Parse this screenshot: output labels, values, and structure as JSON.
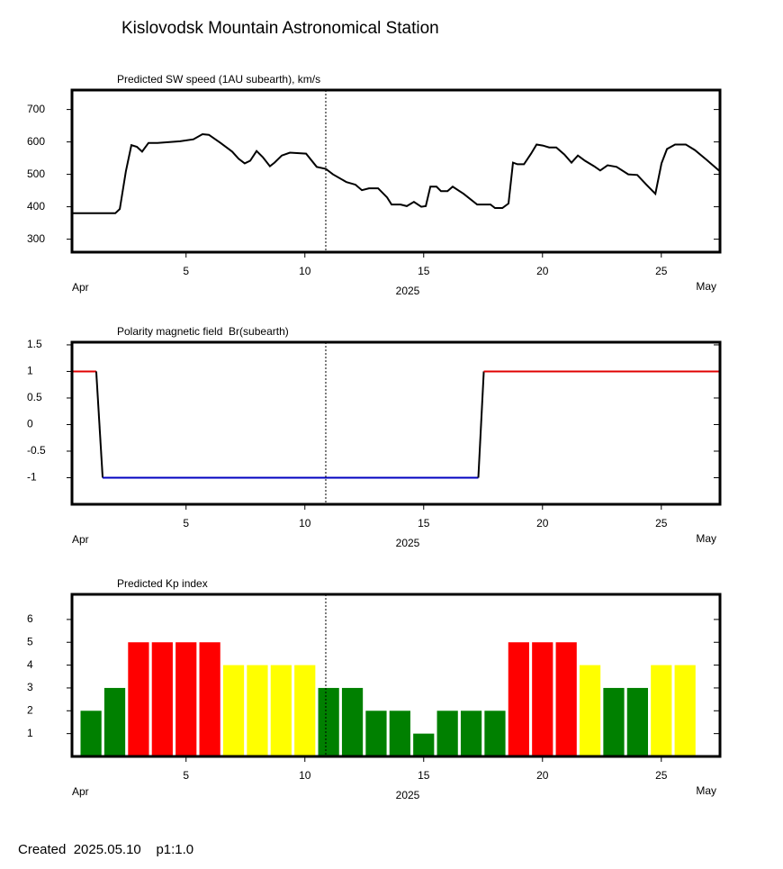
{
  "title": "Kislovodsk Mountain Astronomical Station",
  "footer": "Created  2025.05.10    p1:1.0",
  "chart_data": [
    {
      "type": "line",
      "title": "Predicted SW speed (1AU subearth), km/s",
      "month_start": "Apr",
      "month_end": "May",
      "xlabel": "2025",
      "xlim": [
        0.2,
        27.47
      ],
      "xticks": [
        5,
        10,
        15,
        20,
        25
      ],
      "ylim": [
        260,
        760
      ],
      "yticks": [
        300,
        400,
        500,
        600,
        700
      ],
      "vline": 10.88,
      "series": [
        {
          "color": "#000000",
          "x": [
            0.2,
            1.9,
            2.02,
            2.21,
            2.47,
            2.7,
            2.93,
            3.15,
            3.42,
            3.8,
            4.75,
            5.31,
            5.69,
            5.96,
            6.45,
            6.94,
            7.21,
            7.47,
            7.7,
            7.97,
            8.23,
            8.53,
            8.72,
            9.03,
            9.37,
            10.05,
            10.5,
            10.88,
            11.18,
            11.75,
            12.13,
            12.4,
            12.7,
            13.08,
            13.46,
            13.65,
            14.03,
            14.29,
            14.59,
            14.9,
            15.09,
            15.28,
            15.54,
            15.73,
            16.0,
            16.22,
            16.68,
            17.25,
            17.81,
            18.0,
            18.31,
            18.57,
            18.76,
            18.95,
            19.22,
            19.52,
            19.75,
            20.01,
            20.28,
            20.58,
            20.92,
            21.22,
            21.49,
            21.79,
            22.17,
            22.43,
            22.74,
            23.12,
            23.61,
            23.99,
            24.37,
            24.75,
            25.01,
            25.24,
            25.58,
            26.03,
            26.41,
            26.9,
            27.47
          ],
          "values": [
            380,
            380,
            380,
            393,
            510,
            590,
            585,
            570,
            597,
            597,
            602,
            608,
            624,
            622,
            597,
            570,
            548,
            534,
            542,
            572,
            553,
            525,
            536,
            558,
            567,
            564,
            523,
            517,
            500,
            476,
            468,
            451,
            457,
            457,
            429,
            407,
            407,
            402,
            415,
            400,
            402,
            462,
            462,
            448,
            448,
            462,
            440,
            407,
            407,
            396,
            396,
            410,
            536,
            531,
            531,
            564,
            592,
            589,
            583,
            583,
            561,
            536,
            558,
            542,
            525,
            512,
            528,
            523,
            500,
            498,
            468,
            440,
            534,
            578,
            592,
            592,
            575,
            545,
            509
          ]
        }
      ]
    },
    {
      "type": "line",
      "title": "Polarity magnetic field  Br(subearth)",
      "month_start": "Apr",
      "month_end": "May",
      "xlabel": "2025",
      "xlim": [
        0.2,
        27.47
      ],
      "xticks": [
        5,
        10,
        15,
        20,
        25
      ],
      "ylim": [
        -1.5,
        1.55
      ],
      "yticks": [
        1.5,
        1,
        0.5,
        0,
        -0.5,
        -1
      ],
      "vline": 10.88,
      "series": [
        {
          "x": [
            0.2,
            1.22,
            1.49,
            17.3,
            17.53,
            27.47
          ],
          "values": [
            1,
            1,
            -1,
            -1,
            1,
            1
          ],
          "colors": [
            "#e00000",
            "#000000",
            "#0000c0",
            "#000000",
            "#e00000"
          ]
        }
      ]
    },
    {
      "type": "bar",
      "title": "Predicted Kp index",
      "month_start": "Apr",
      "month_end": "May",
      "xlabel": "2025",
      "xlim": [
        0.2,
        27.47
      ],
      "xticks": [
        5,
        10,
        15,
        20,
        25
      ],
      "ylim": [
        0,
        7.1
      ],
      "yticks": [
        1,
        2,
        3,
        4,
        5,
        6
      ],
      "vline": 10.88,
      "x": [
        1,
        2,
        3,
        4,
        5,
        6,
        7,
        8,
        9,
        10,
        11,
        12,
        13,
        14,
        15,
        16,
        17,
        18,
        19,
        20,
        21,
        22,
        23,
        24,
        25,
        26
      ],
      "values": [
        2,
        3,
        5,
        5,
        5,
        5,
        4,
        4,
        4,
        4,
        3,
        3,
        2,
        2,
        1,
        2,
        2,
        2,
        5,
        5,
        5,
        4,
        3,
        3,
        4,
        4
      ],
      "colors": [
        "#008000",
        "#008000",
        "#ff0000",
        "#ff0000",
        "#ff0000",
        "#ff0000",
        "#ffff00",
        "#ffff00",
        "#ffff00",
        "#ffff00",
        "#008000",
        "#008000",
        "#008000",
        "#008000",
        "#008000",
        "#008000",
        "#008000",
        "#008000",
        "#ff0000",
        "#ff0000",
        "#ff0000",
        "#ffff00",
        "#008000",
        "#008000",
        "#ffff00",
        "#ffff00"
      ]
    }
  ]
}
